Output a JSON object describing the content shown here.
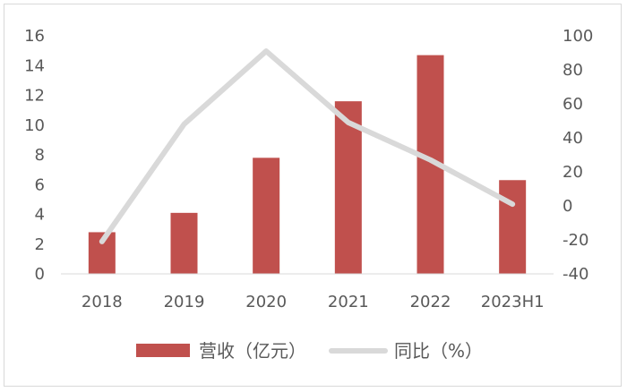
{
  "chart_data": {
    "type": "bar",
    "categories": [
      "2018",
      "2019",
      "2020",
      "2021",
      "2022",
      "2023H1"
    ],
    "series": [
      {
        "name": "营收（亿元）",
        "type": "bar",
        "axis": "left",
        "color": "#c0504d",
        "values": [
          2.8,
          4.1,
          7.8,
          11.6,
          14.7,
          6.3
        ]
      },
      {
        "name": "同比（%）",
        "type": "line",
        "axis": "right",
        "color": "#d9d9d9",
        "values": [
          -21,
          48,
          91,
          49,
          27,
          1
        ]
      }
    ],
    "y_left": {
      "min": 0,
      "max": 16,
      "step": 2
    },
    "y_right": {
      "min": -40,
      "max": 100,
      "step": 20
    },
    "grid": false,
    "legend_position": "bottom",
    "title": "",
    "xlabel": "",
    "ylabel": ""
  }
}
